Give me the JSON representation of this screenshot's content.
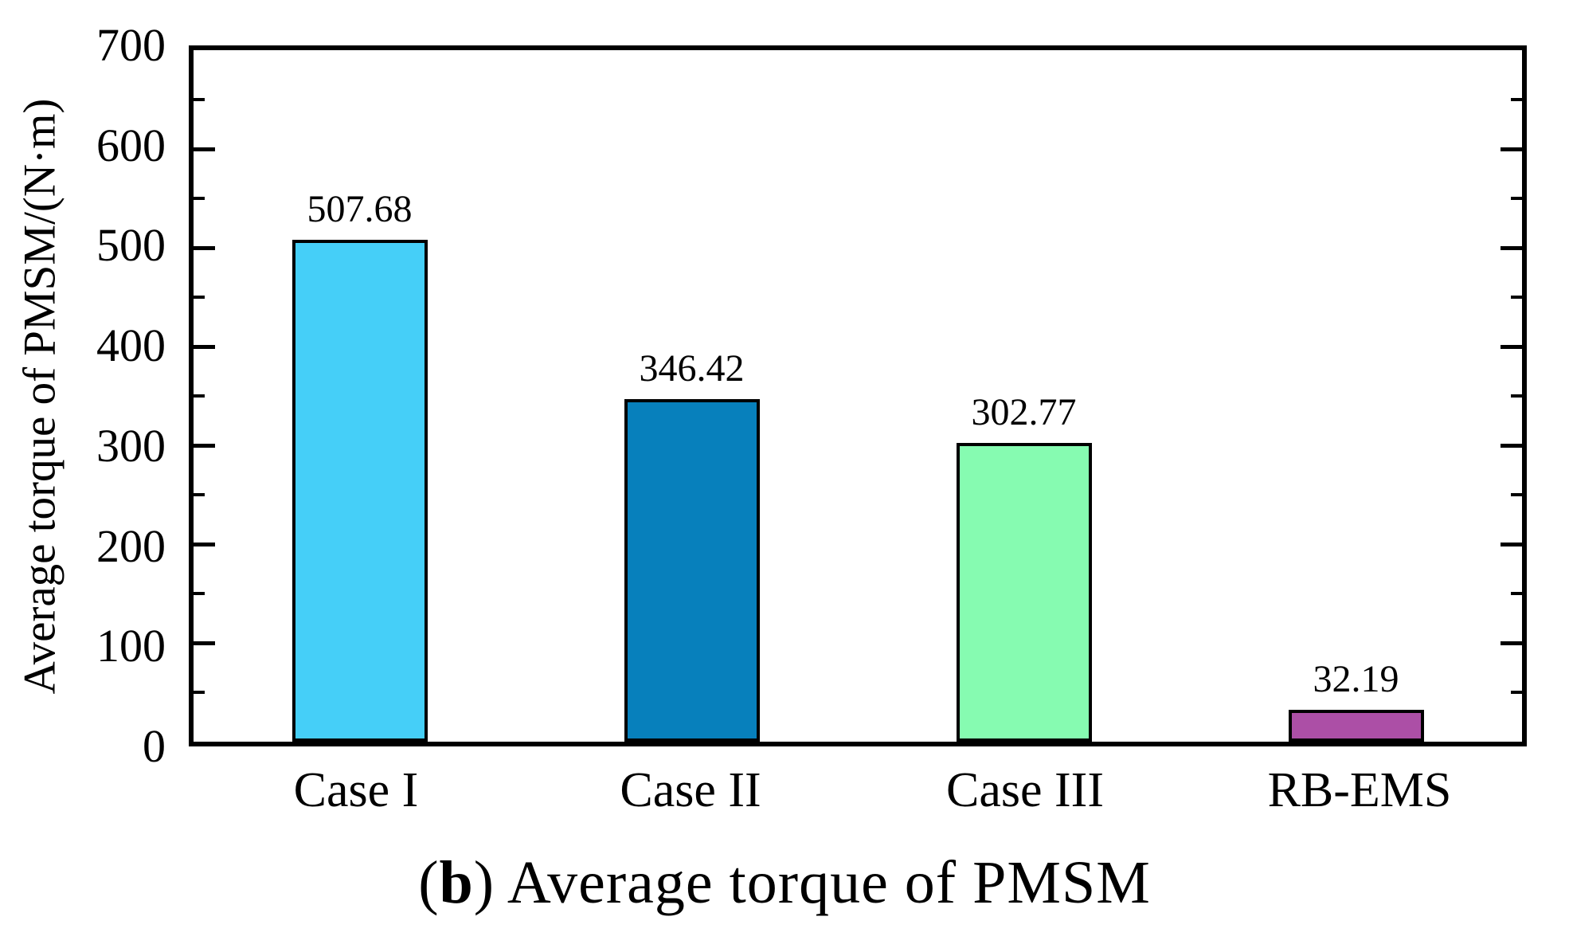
{
  "chart_data": {
    "type": "bar",
    "title": "",
    "xlabel": "",
    "ylabel": "Average torque of PMSM/(N·m)",
    "categories": [
      "Case I",
      "Case II",
      "Case III",
      "RB-EMS"
    ],
    "values": [
      507.68,
      346.42,
      302.77,
      32.19
    ],
    "value_labels": [
      "507.68",
      "346.42",
      "302.77",
      "32.19"
    ],
    "bar_colors": [
      "#45CFF8",
      "#0780BC",
      "#86FBB1",
      "#AC4FA6"
    ],
    "bar_border_color": "#000000",
    "axis_color": "#000000",
    "ylim": [
      0,
      700
    ],
    "yticks": [
      0,
      100,
      200,
      300,
      400,
      500,
      600,
      700
    ],
    "ytick_labels": [
      "0",
      "100",
      "200",
      "300",
      "400",
      "500",
      "600",
      "700"
    ],
    "major_tick_step": 100,
    "minor_tick_step": 50,
    "grid": false,
    "legend": "none",
    "tick_direction": "in",
    "caption": {
      "prefix": "(",
      "bold": "b",
      "suffix": ") Average torque of PMSM"
    }
  }
}
